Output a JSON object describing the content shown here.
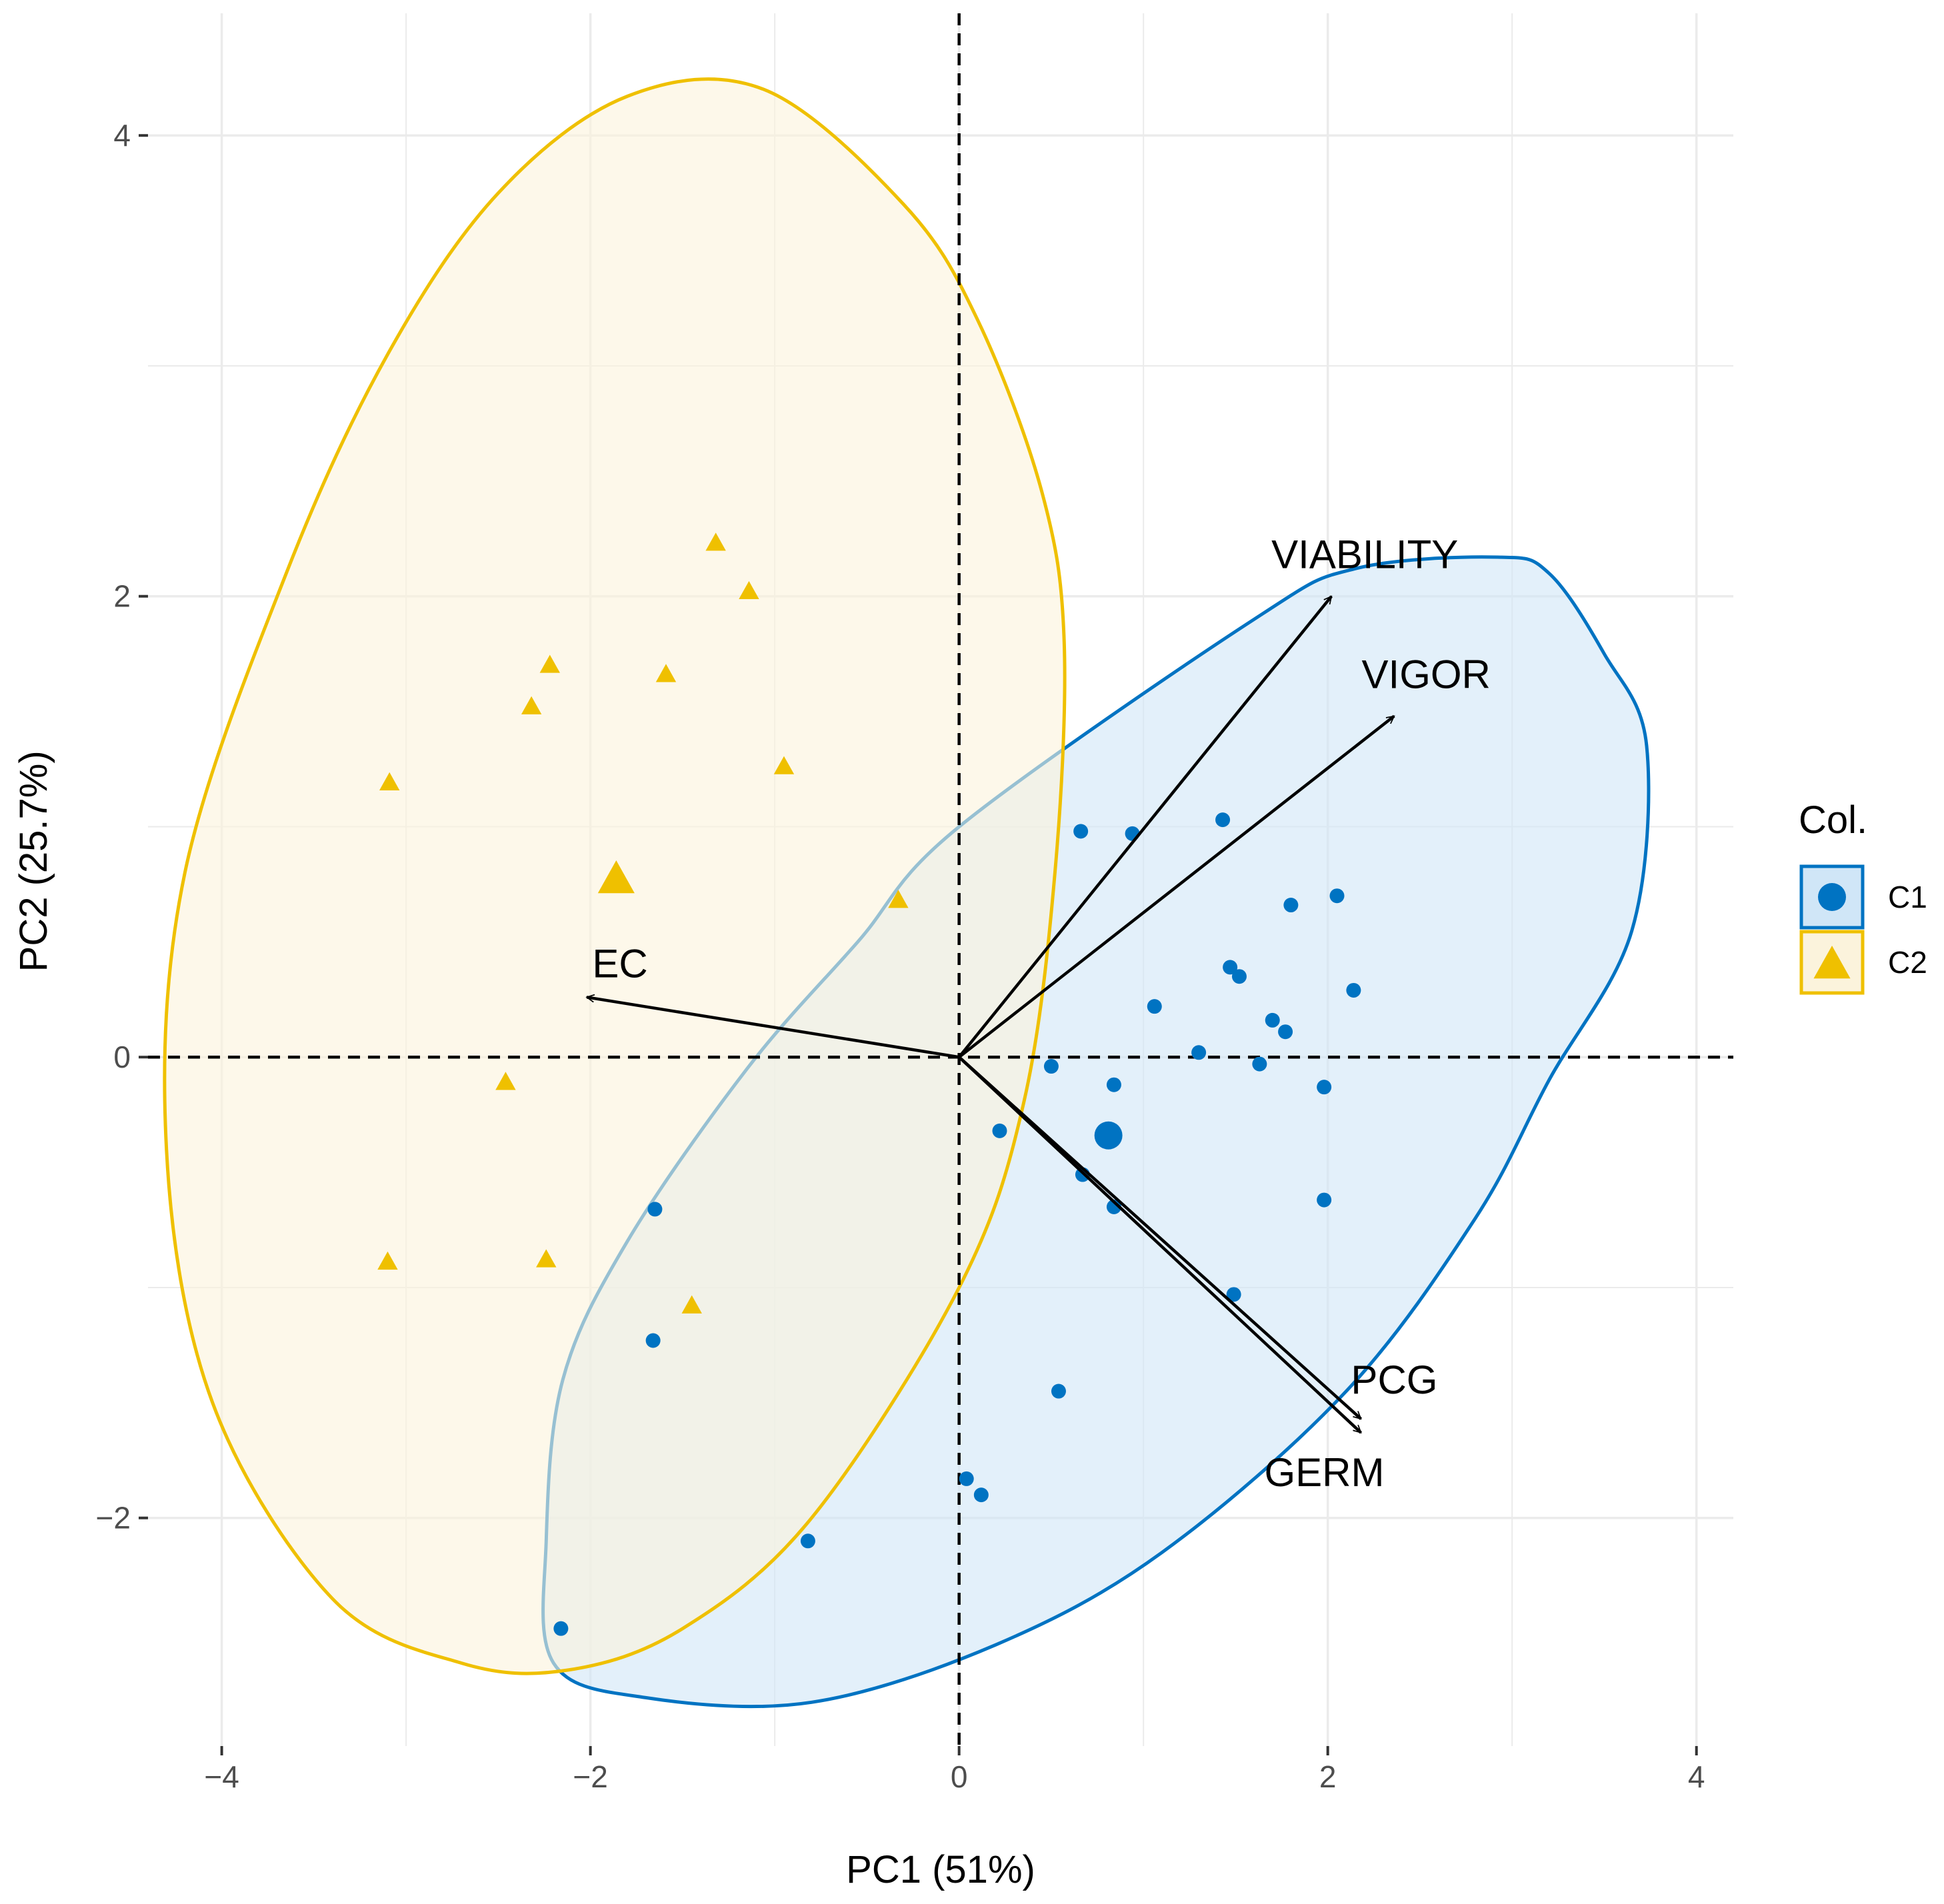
{
  "chart_data": {
    "type": "scatter",
    "subtype": "pca-biplot",
    "title": "",
    "xlabel": "PC1 (51%)",
    "ylabel": "PC2 (25.7%)",
    "xlim": [
      -4.4,
      4.2
    ],
    "ylim": [
      -2.99,
      4.53
    ],
    "grid": true,
    "xticks": [
      -4,
      -2,
      0,
      2,
      4
    ],
    "yticks": [
      -2,
      0,
      2,
      4
    ],
    "xtick_labels": [
      "−4",
      "−2",
      "0",
      "2",
      "4"
    ],
    "ytick_labels": [
      "−2",
      "0",
      "2",
      "4"
    ],
    "reference_lines": {
      "x": 0,
      "y": 0,
      "style": "dashed"
    },
    "legend": {
      "title": "Col.",
      "position": "right",
      "entries": [
        {
          "label": "C1",
          "shape": "circle",
          "color": "#0073C2"
        },
        {
          "label": "C2",
          "shape": "triangle",
          "color": "#EFC000"
        }
      ]
    },
    "series": [
      {
        "name": "C1",
        "shape": "circle",
        "color": "#0073C2",
        "fill": "#D0E6F7",
        "points": [
          [
            0.66,
            0.98
          ],
          [
            0.94,
            0.97
          ],
          [
            1.43,
            1.03
          ],
          [
            2.05,
            0.7
          ],
          [
            1.8,
            0.66
          ],
          [
            1.47,
            0.39
          ],
          [
            1.52,
            0.35
          ],
          [
            2.14,
            0.29
          ],
          [
            1.06,
            0.22
          ],
          [
            1.7,
            0.16
          ],
          [
            1.77,
            0.11
          ],
          [
            1.3,
            0.02
          ],
          [
            1.63,
            -0.03
          ],
          [
            0.5,
            -0.04
          ],
          [
            0.84,
            -0.12
          ],
          [
            1.98,
            -0.13
          ],
          [
            0.22,
            -0.32
          ],
          [
            0.67,
            -0.51
          ],
          [
            -1.65,
            -0.66
          ],
          [
            0.84,
            -0.65
          ],
          [
            1.98,
            -0.62
          ],
          [
            1.49,
            -1.03
          ],
          [
            -1.66,
            -1.23
          ],
          [
            0.54,
            -1.45
          ],
          [
            0.04,
            -1.83
          ],
          [
            0.12,
            -1.9
          ],
          [
            -0.82,
            -2.1
          ],
          [
            -2.16,
            -2.48
          ]
        ],
        "centroid": [
          0.81,
          -0.34
        ],
        "ellipse": [
          [
            0.0,
            1.0
          ],
          [
            1.6,
            1.9
          ],
          [
            2.15,
            2.12
          ],
          [
            2.92,
            2.17
          ],
          [
            3.2,
            2.1
          ],
          [
            3.5,
            1.75
          ],
          [
            3.73,
            1.35
          ],
          [
            3.65,
            0.55
          ],
          [
            3.2,
            -0.1
          ],
          [
            2.8,
            -0.7
          ],
          [
            2.1,
            -1.45
          ],
          [
            1.1,
            -2.15
          ],
          [
            0.2,
            -2.55
          ],
          [
            -0.8,
            -2.8
          ],
          [
            -1.7,
            -2.78
          ],
          [
            -2.2,
            -2.63
          ],
          [
            -2.24,
            -2.1
          ],
          [
            -2.15,
            -1.4
          ],
          [
            -1.8,
            -0.8
          ],
          [
            -1.15,
            -0.05
          ],
          [
            -0.55,
            0.5
          ]
        ]
      },
      {
        "name": "C2",
        "shape": "triangle",
        "color": "#EFC000",
        "fill": "#FBF3DC",
        "points": [
          [
            -1.32,
            2.23
          ],
          [
            -1.14,
            2.02
          ],
          [
            -2.22,
            1.7
          ],
          [
            -1.59,
            1.66
          ],
          [
            -2.32,
            1.52
          ],
          [
            -0.95,
            1.26
          ],
          [
            -3.09,
            1.19
          ],
          [
            -0.33,
            0.68
          ],
          [
            -2.46,
            -0.11
          ],
          [
            -3.1,
            -0.89
          ],
          [
            -2.24,
            -0.88
          ],
          [
            -1.45,
            -1.08
          ]
        ],
        "centroid": [
          -1.86,
          0.77
        ],
        "ellipse": [
          [
            -1.06,
            4.2
          ],
          [
            -0.3,
            3.7
          ],
          [
            0.1,
            3.2
          ],
          [
            0.45,
            2.45
          ],
          [
            0.57,
            1.8
          ],
          [
            0.52,
            0.8
          ],
          [
            0.35,
            -0.2
          ],
          [
            0.0,
            -1.0
          ],
          [
            -0.8,
            -2.0
          ],
          [
            -1.5,
            -2.48
          ],
          [
            -2.12,
            -2.66
          ],
          [
            -2.7,
            -2.63
          ],
          [
            -3.4,
            -2.35
          ],
          [
            -4.05,
            -1.5
          ],
          [
            -4.3,
            -0.4
          ],
          [
            -4.2,
            0.8
          ],
          [
            -3.65,
            2.1
          ],
          [
            -3.1,
            3.05
          ],
          [
            -2.5,
            3.75
          ],
          [
            -1.8,
            4.17
          ]
        ]
      }
    ],
    "loadings": [
      {
        "name": "VIABILITY",
        "x": 2.02,
        "y": 2.0
      },
      {
        "name": "VIGOR",
        "x": 2.36,
        "y": 1.48
      },
      {
        "name": "EC",
        "x": -2.02,
        "y": 0.26
      },
      {
        "name": "PCG",
        "x": 2.18,
        "y": -1.57
      },
      {
        "name": "GERM",
        "x": 2.18,
        "y": -1.63
      }
    ]
  }
}
